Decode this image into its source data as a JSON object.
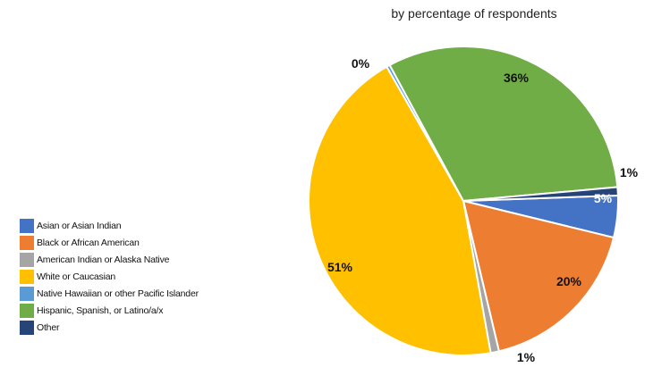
{
  "chart_data": {
    "type": "pie",
    "subtitle": "by percentage of respondents",
    "slices": [
      {
        "name": "Asian or Asian Indian",
        "value": 5,
        "label": "5%",
        "color": "#4472C4",
        "label_color": "#ffffff"
      },
      {
        "name": "Black or African American",
        "value": 20,
        "label": "20%",
        "color": "#ED7D31",
        "label_color": "#111111"
      },
      {
        "name": "American Indian or Alaska Native",
        "value": 1,
        "label": "1%",
        "color": "#A5A5A5",
        "label_color": "#111111"
      },
      {
        "name": "White or Caucasian",
        "value": 51,
        "label": "51%",
        "color": "#FFC000",
        "label_color": "#111111"
      },
      {
        "name": "Native Hawaiian or other Pacific Islander",
        "value": 0,
        "label": "0%",
        "color": "#5B9BD5",
        "label_color": "#111111"
      },
      {
        "name": "Hispanic, Spanish, or Latino/a/x",
        "value": 36,
        "label": "36%",
        "color": "#70AD47",
        "label_color": "#111111"
      },
      {
        "name": "Other",
        "value": 1,
        "label": "1%",
        "color": "#264478",
        "label_color": "#111111"
      }
    ],
    "legend_position": "left"
  }
}
